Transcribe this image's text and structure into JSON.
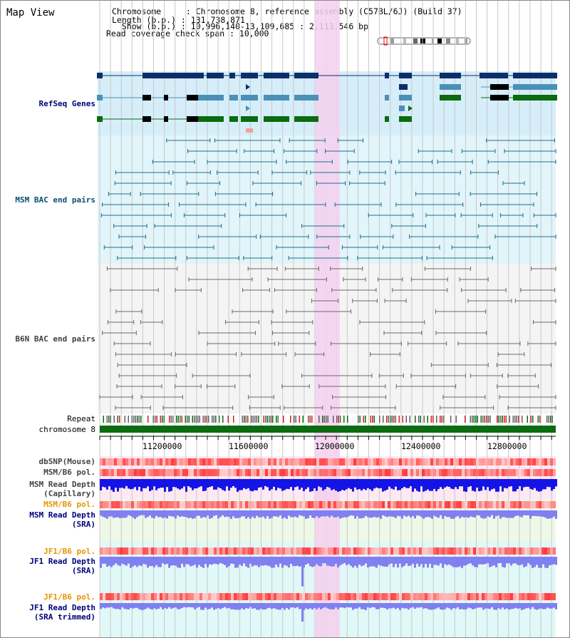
{
  "window": {
    "title": "Map View"
  },
  "info": {
    "chromosome": "Chromosome     : Chromosome 8, reference assembly (C57BL/6J) (Build 37)",
    "length": "Length (b.p.) : 131,738,871",
    "show": "  Show (b.p.) : 10,996,140-13,109,685 : 2,113,546 bp",
    "coverage": "Read coverage check span : 10,000"
  },
  "tracks": {
    "refseq": "RefSeq Genes",
    "msm_bac": "MSM BAC end pairs",
    "b6n_bac": "B6N BAC end pairs",
    "repeat": "Repeat",
    "chromosome": "chromosome 8",
    "dbsnp": "dbSNP(Mouse)",
    "msm_b6_pol_1": "MSM/B6 pol.",
    "msm_depth_cap_1": "MSM Read Depth",
    "msm_depth_cap_2": "(Capillary)",
    "msm_b6_pol_2": "MSM/B6 pol.",
    "msm_depth_sra_1": "MSM Read Depth",
    "msm_depth_sra_2": "(SRA)",
    "jf1_b6_pol_1": "JF1/B6 pol.",
    "jf1_depth_sra_1": "JF1 Read Depth",
    "jf1_depth_sra_2": "(SRA)",
    "jf1_b6_pol_2": "JF1/B6 pol.",
    "jf1_depth_trim_1": "JF1 Read Depth",
    "jf1_depth_trim_2": "(SRA trimmed)"
  },
  "axis": {
    "ticks": [
      "11200000",
      "11600000",
      "12000000",
      "12400000",
      "12800000"
    ]
  },
  "colors": {
    "refseq_dark": "#0c2f6b",
    "refseq_mid": "#4a90b8",
    "refseq_green": "#0a6b10",
    "msm_line": "#1e6e8c",
    "b6n_line": "#6a6a6a",
    "highlight": "#f5d0ee",
    "chromosome": "#0a6b10",
    "depth_dark": "#1414e6",
    "depth_light": "#8080f0"
  }
}
